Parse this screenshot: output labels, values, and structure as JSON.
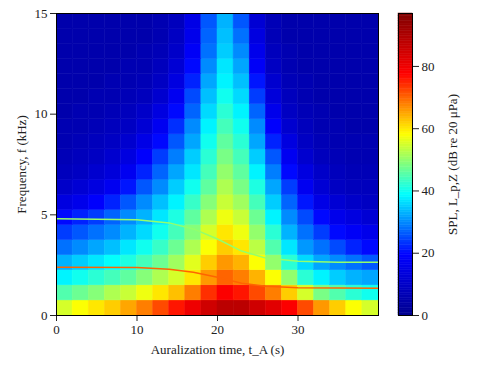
{
  "chart_data": {
    "type": "heatmap",
    "x_label": "Auralization time, t_A (s)",
    "y_label": "Frequency, f (kHz)",
    "xlim": [
      0,
      40
    ],
    "xticks": [
      0,
      10,
      20,
      30
    ],
    "ylim": [
      0,
      15
    ],
    "yticks": [
      0,
      5,
      10,
      15
    ],
    "time": [
      1,
      3,
      5,
      7,
      9,
      11,
      13,
      15,
      17,
      19,
      21,
      23,
      25,
      27,
      29,
      31,
      33,
      35,
      37,
      39
    ],
    "frequency": [
      0.375,
      1.125,
      1.875,
      2.625,
      3.375,
      4.125,
      4.875,
      5.625,
      6.375,
      7.125,
      7.875,
      8.625,
      9.375,
      10.125,
      10.875,
      11.625,
      12.375,
      13.125,
      13.875,
      14.625
    ],
    "spl": [
      [
        55,
        58,
        60,
        62,
        65,
        68,
        72,
        76,
        80,
        85,
        88,
        88,
        85,
        82,
        78,
        72,
        66,
        62,
        58,
        55
      ],
      [
        45,
        47,
        49,
        52,
        54,
        57,
        60,
        63,
        68,
        74,
        78,
        76,
        72,
        68,
        62,
        55,
        48,
        45,
        42,
        40
      ],
      [
        38,
        40,
        42,
        44,
        46,
        49,
        52,
        55,
        60,
        66,
        70,
        68,
        64,
        58,
        50,
        42,
        38,
        35,
        33,
        32
      ],
      [
        33,
        35,
        37,
        39,
        41,
        44,
        47,
        51,
        56,
        62,
        66,
        64,
        58,
        50,
        42,
        36,
        32,
        30,
        28,
        26
      ],
      [
        28,
        30,
        32,
        34,
        37,
        40,
        43,
        47,
        52,
        58,
        62,
        60,
        53,
        45,
        37,
        31,
        28,
        25,
        22,
        20
      ],
      [
        24,
        26,
        28,
        30,
        33,
        36,
        40,
        44,
        49,
        55,
        60,
        57,
        50,
        42,
        33,
        28,
        24,
        20,
        18,
        16
      ],
      [
        20,
        22,
        24,
        27,
        30,
        33,
        37,
        41,
        46,
        52,
        57,
        54,
        47,
        38,
        30,
        25,
        20,
        16,
        14,
        12
      ],
      [
        14,
        16,
        19,
        22,
        26,
        30,
        34,
        38,
        43,
        49,
        54,
        51,
        44,
        35,
        27,
        21,
        15,
        12,
        10,
        9
      ],
      [
        10,
        12,
        14,
        17,
        21,
        26,
        30,
        35,
        40,
        46,
        52,
        48,
        41,
        32,
        24,
        17,
        12,
        9,
        8,
        8
      ],
      [
        8,
        9,
        11,
        13,
        17,
        22,
        27,
        32,
        37,
        44,
        50,
        46,
        38,
        29,
        20,
        14,
        10,
        8,
        7,
        7
      ],
      [
        7,
        8,
        9,
        11,
        14,
        19,
        24,
        29,
        35,
        42,
        48,
        44,
        35,
        26,
        17,
        11,
        8,
        7,
        6,
        6
      ],
      [
        6,
        7,
        8,
        9,
        11,
        15,
        20,
        26,
        32,
        40,
        46,
        42,
        32,
        22,
        14,
        9,
        7,
        6,
        6,
        6
      ],
      [
        6,
        6,
        7,
        8,
        9,
        12,
        17,
        23,
        30,
        38,
        44,
        40,
        30,
        19,
        11,
        8,
        6,
        6,
        5,
        5
      ],
      [
        5,
        6,
        6,
        7,
        8,
        10,
        14,
        20,
        27,
        36,
        42,
        38,
        27,
        16,
        9,
        7,
        6,
        5,
        5,
        5
      ],
      [
        5,
        5,
        6,
        6,
        7,
        8,
        11,
        17,
        25,
        34,
        40,
        36,
        24,
        13,
        8,
        6,
        5,
        5,
        5,
        5
      ],
      [
        5,
        5,
        5,
        6,
        6,
        7,
        9,
        14,
        22,
        32,
        38,
        34,
        21,
        11,
        7,
        6,
        5,
        5,
        5,
        5
      ],
      [
        5,
        5,
        5,
        5,
        6,
        6,
        8,
        12,
        20,
        30,
        37,
        32,
        18,
        9,
        6,
        5,
        5,
        5,
        5,
        5
      ],
      [
        5,
        5,
        5,
        5,
        5,
        6,
        7,
        10,
        18,
        28,
        35,
        30,
        16,
        8,
        6,
        5,
        5,
        5,
        5,
        5
      ],
      [
        5,
        5,
        5,
        5,
        5,
        5,
        6,
        9,
        16,
        27,
        34,
        28,
        14,
        7,
        5,
        5,
        5,
        5,
        5,
        5
      ],
      [
        5,
        5,
        5,
        5,
        5,
        5,
        6,
        8,
        15,
        26,
        33,
        26,
        12,
        7,
        5,
        5,
        5,
        5,
        5,
        5
      ]
    ],
    "tones": [
      {
        "x": [
          0,
          10,
          14,
          17,
          20,
          23,
          26,
          30,
          35,
          40
        ],
        "values": [
          4.8,
          4.75,
          4.6,
          4.3,
          3.8,
          3.2,
          2.85,
          2.7,
          2.65,
          2.65
        ],
        "spl": 50
      },
      {
        "x": [
          0,
          10,
          14,
          17,
          20,
          23,
          26,
          30,
          40
        ],
        "values": [
          2.4,
          2.38,
          2.3,
          2.15,
          1.9,
          1.6,
          1.45,
          1.38,
          1.35
        ],
        "spl": 70
      }
    ],
    "colorbar": {
      "range": [
        0,
        97
      ],
      "ticks": [
        0,
        20,
        40,
        60,
        80
      ],
      "label": "SPL, L_p,Z (dB re 20 μPa)"
    }
  }
}
